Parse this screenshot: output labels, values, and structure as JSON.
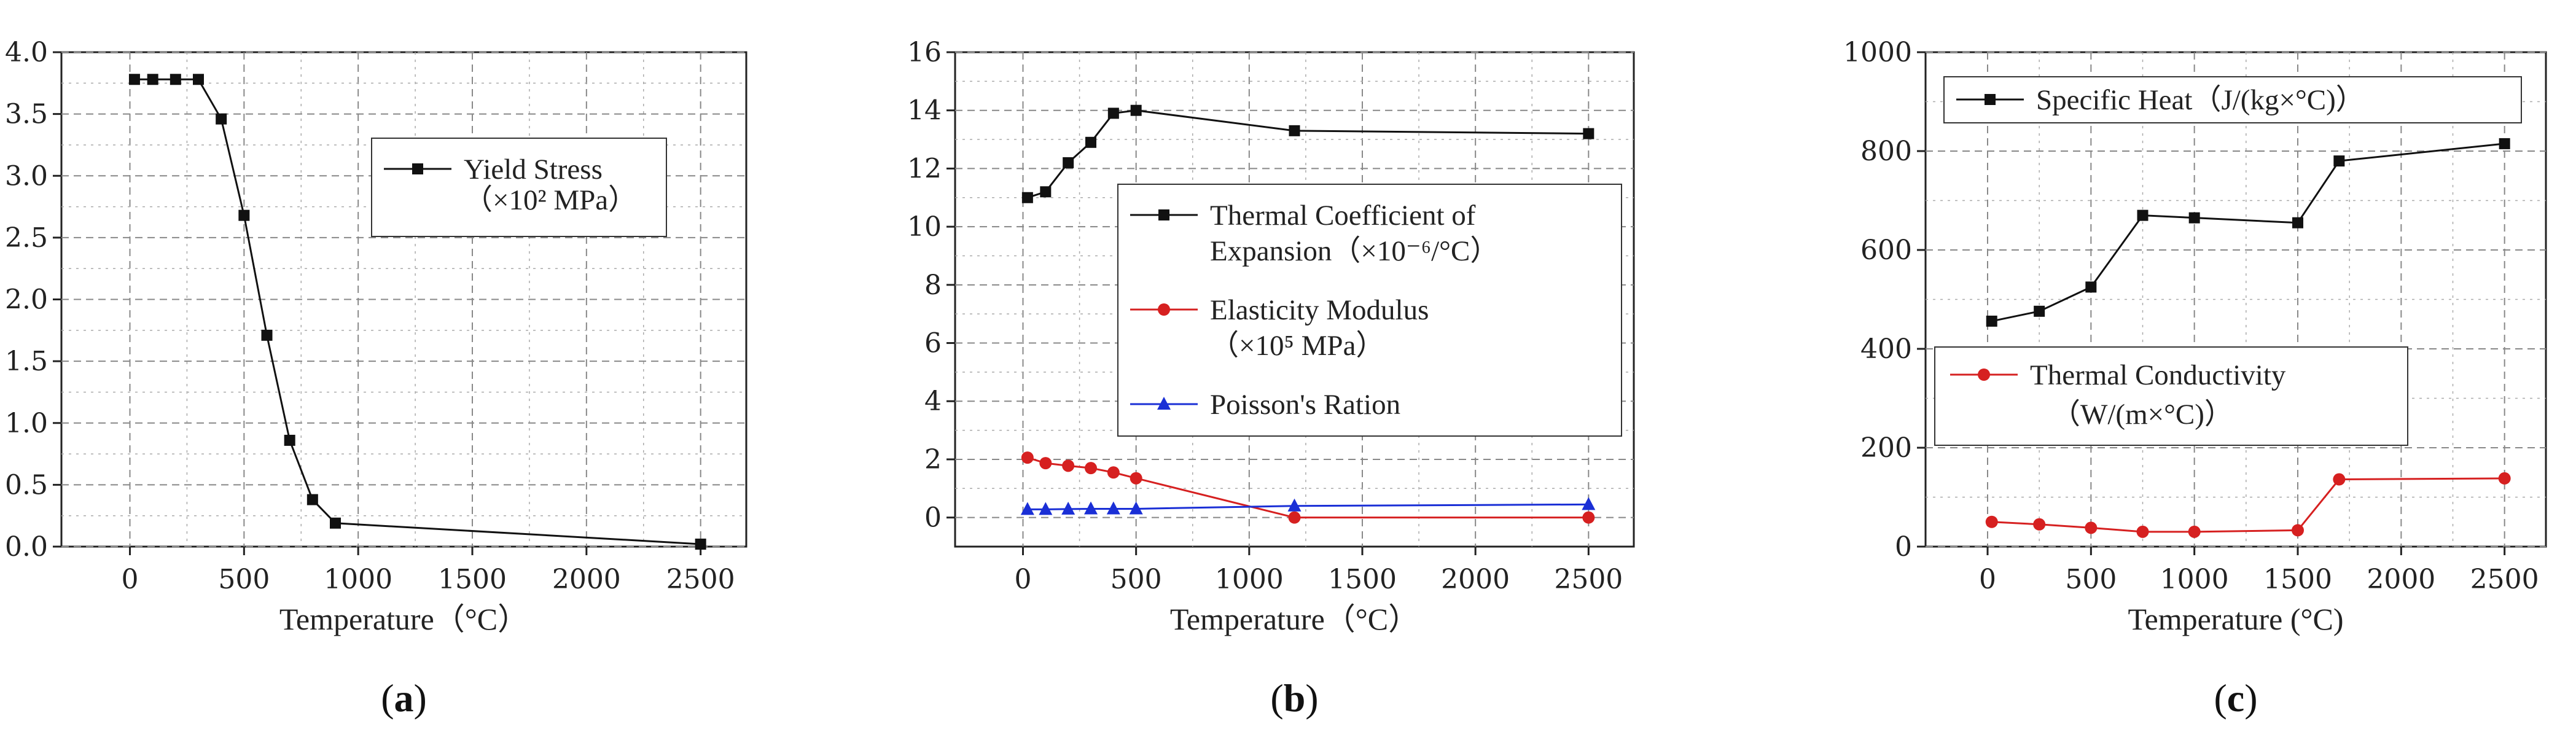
{
  "chart_data": [
    {
      "id": "a",
      "type": "line",
      "subfigure_label": "a",
      "xlabel": "Temperature（°C）",
      "ylabel": "",
      "xlim": [
        -300,
        2700
      ],
      "ylim": [
        0,
        4.0
      ],
      "xticks": [
        0,
        500,
        1000,
        1500,
        2000,
        2500
      ],
      "xtick_labels": [
        "0",
        "500",
        "1000",
        "1500",
        "2000",
        "2500"
      ],
      "yticks": [
        0,
        0.5,
        1.0,
        1.5,
        2.0,
        2.5,
        3.0,
        3.5,
        4.0
      ],
      "ytick_labels": [
        "0.0",
        "0.5",
        "1.0",
        "1.5",
        "2.0",
        "2.5",
        "3.0",
        "3.5",
        "4.0"
      ],
      "grid": true,
      "legend_position": "top-right",
      "series": [
        {
          "name": "Yield Stress",
          "name_line2": "（×10² MPa）",
          "color": "#111111",
          "marker": "square",
          "x": [
            20,
            100,
            200,
            300,
            400,
            500,
            600,
            700,
            800,
            900,
            2500
          ],
          "values": [
            3.78,
            3.78,
            3.78,
            3.78,
            3.46,
            2.68,
            1.71,
            0.86,
            0.38,
            0.19,
            0.02
          ]
        }
      ]
    },
    {
      "id": "b",
      "type": "line",
      "subfigure_label": "b",
      "xlabel": "Temperature（°C）",
      "ylabel": "",
      "xlim": [
        -300,
        2700
      ],
      "ylim": [
        -1,
        16
      ],
      "xticks": [
        0,
        500,
        1000,
        1500,
        2000,
        2500
      ],
      "xtick_labels": [
        "0",
        "500",
        "1000",
        "1500",
        "2000",
        "2500"
      ],
      "yticks": [
        0,
        2,
        4,
        6,
        8,
        10,
        12,
        14,
        16
      ],
      "ytick_labels": [
        "0",
        "2",
        "4",
        "6",
        "8",
        "10",
        "12",
        "14",
        "16"
      ],
      "grid": true,
      "legend_position": "center-right",
      "series": [
        {
          "name": "Thermal Coefficient of",
          "name_line2": "Expansion（×10⁻⁶/°C）",
          "color": "#111111",
          "marker": "square",
          "x": [
            20,
            100,
            200,
            300,
            400,
            500,
            1200,
            2500
          ],
          "values": [
            11.0,
            11.2,
            12.2,
            12.9,
            13.9,
            14.0,
            13.3,
            13.2
          ]
        },
        {
          "name": "Elasticity Modulus",
          "name_line2": "（×10⁵ MPa）",
          "color": "#d62020",
          "marker": "circle",
          "x": [
            20,
            100,
            200,
            300,
            400,
            500,
            1200,
            2500
          ],
          "values": [
            2.06,
            1.87,
            1.78,
            1.7,
            1.55,
            1.35,
            0.0,
            0.0
          ]
        },
        {
          "name": "Poisson's Ration",
          "name_line2": "",
          "color": "#1a2fd6",
          "marker": "triangle",
          "x": [
            20,
            100,
            200,
            300,
            400,
            500,
            1200,
            2500
          ],
          "values": [
            0.28,
            0.28,
            0.29,
            0.3,
            0.3,
            0.3,
            0.4,
            0.45
          ]
        }
      ]
    },
    {
      "id": "c",
      "type": "line",
      "subfigure_label": "c",
      "xlabel": "Temperature (°C)",
      "ylabel": "",
      "xlim": [
        -300,
        2700
      ],
      "ylim": [
        0,
        1000
      ],
      "xticks": [
        0,
        500,
        1000,
        1500,
        2000,
        2500
      ],
      "xtick_labels": [
        "0",
        "500",
        "1000",
        "1500",
        "2000",
        "2500"
      ],
      "yticks": [
        0,
        200,
        400,
        600,
        800,
        1000
      ],
      "ytick_labels": [
        "0",
        "200",
        "400",
        "600",
        "800",
        "1000"
      ],
      "grid": true,
      "legend_position": "split: top and middle",
      "series": [
        {
          "name": "Specific Heat（J/(kg×°C)）",
          "name_line2": "",
          "color": "#111111",
          "marker": "square",
          "x": [
            20,
            250,
            500,
            750,
            1000,
            1500,
            1700,
            2500
          ],
          "values": [
            456,
            476,
            525,
            670,
            665,
            655,
            780,
            815
          ]
        },
        {
          "name": "Thermal Conductivity",
          "name_line2": "（W/(m×°C)）",
          "color": "#d62020",
          "marker": "circle",
          "x": [
            20,
            250,
            500,
            750,
            1000,
            1500,
            1700,
            2500
          ],
          "values": [
            50,
            45,
            38,
            30,
            30,
            33,
            136,
            138
          ]
        }
      ]
    }
  ]
}
